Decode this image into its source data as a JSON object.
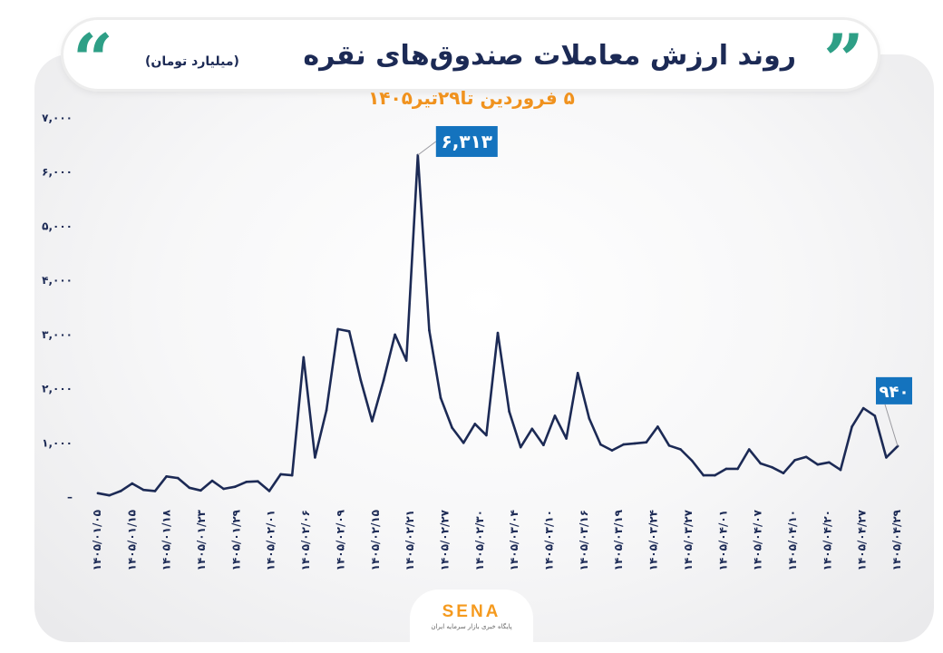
{
  "header": {
    "quote_left": "“",
    "quote_right": "”",
    "title": "روند ارزش معاملات صندوق‌های نقره",
    "unit": "(میلیارد تومان)",
    "subtitle": "۵ فروردین تا۲۹تیر۱۴۰۵"
  },
  "brand": {
    "name": "SENA",
    "tagline": "پایگاه خبری بازار سرمایه ایران"
  },
  "colors": {
    "line": "#1c2a55",
    "callout": "#1473be",
    "accent": "#f0921e",
    "quote": "#2e9f86"
  },
  "chart_data": {
    "type": "line",
    "title": "روند ارزش معاملات صندوق‌های نقره",
    "ylabel": "میلیارد تومان",
    "ylim": [
      0,
      7000
    ],
    "yticks": [
      0,
      1000,
      2000,
      3000,
      4000,
      5000,
      6000,
      7000
    ],
    "ytick_labels": [
      "–",
      "۱,۰۰۰",
      "۲,۰۰۰",
      "۳,۰۰۰",
      "۴,۰۰۰",
      "۵,۰۰۰",
      "۶,۰۰۰",
      "۷,۰۰۰"
    ],
    "xtick_labels": [
      "۱۴۰۵/۰۱/۰۵",
      "۱۴۰۵/۰۱/۱۵",
      "۱۴۰۵/۰۱/۱۸",
      "۱۴۰۵/۰۱/۲۳",
      "۱۴۰۵/۰۱/۲۹",
      "۱۴۰۵/۰۲/۰۱",
      "۱۴۰۵/۰۲/۰۶",
      "۱۴۰۵/۰۲/۰۹",
      "۱۴۰۵/۰۲/۱۵",
      "۱۴۰۵/۰۲/۲۱",
      "۱۴۰۵/۰۲/۲۷",
      "۱۴۰۵/۰۲/۳۰",
      "۱۴۰۵/۰۳/۰۴",
      "۱۴۰۵/۰۳/۱۰",
      "۱۴۰۵/۰۳/۱۶",
      "۱۴۰۵/۰۳/۱۹",
      "۱۴۰۵/۰۳/۲۴",
      "۱۴۰۵/۰۳/۲۷",
      "۱۴۰۵/۰۴/۰۱",
      "۱۴۰۵/۰۴/۰۷",
      "۱۴۰۵/۰۴/۱۰",
      "۱۴۰۵/۰۴/۲۰",
      "۱۴۰۵/۰۴/۲۷",
      "۱۴۰۵/۰۴/۲۹"
    ],
    "series": [
      {
        "values": [
          70,
          30,
          110,
          250,
          130,
          110,
          380,
          350,
          170,
          120,
          300,
          150,
          190,
          280,
          290,
          110,
          420,
          400,
          2580,
          730,
          1600,
          3100,
          3060,
          2160,
          1400,
          2150,
          3000,
          2520,
          6313,
          3080,
          1830,
          1280,
          1000,
          1350,
          1140,
          3030,
          1580,
          920,
          1260,
          960,
          1500,
          1080,
          2290,
          1450,
          970,
          860,
          970,
          990,
          1010,
          1300,
          950,
          880,
          670,
          400,
          400,
          520,
          520,
          880,
          620,
          550,
          440,
          680,
          740,
          600,
          640,
          500,
          1300,
          1640,
          1500,
          730,
          940
        ]
      }
    ],
    "annotations": [
      {
        "label": "۶,۳۱۳",
        "index": 28,
        "value": 6313
      },
      {
        "label": "۹۴۰",
        "index": 70,
        "value": 940
      }
    ],
    "grid": false,
    "legend": "none"
  }
}
